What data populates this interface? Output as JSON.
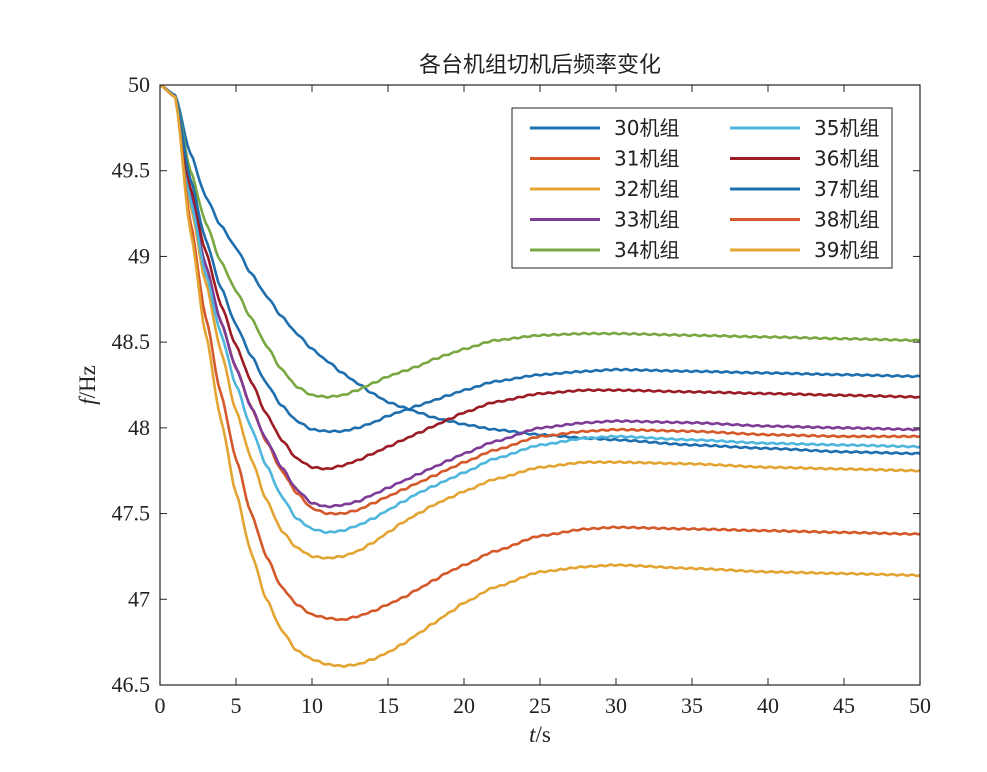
{
  "chart_data": {
    "type": "line",
    "title": "各台机组切机后频率变化",
    "xlabel_var": "t",
    "xlabel_unit": "/s",
    "ylabel_var": "f",
    "ylabel_unit": "/Hz",
    "xlim": [
      0,
      50
    ],
    "ylim": [
      46.5,
      50
    ],
    "xticks": [
      0,
      5,
      10,
      15,
      20,
      25,
      30,
      35,
      40,
      45,
      50
    ],
    "yticks": [
      46.5,
      47,
      47.5,
      48,
      48.5,
      49,
      49.5,
      50
    ],
    "grid": false,
    "legend_position": "top-right",
    "legend_columns": 2,
    "series": [
      {
        "name": "30机组",
        "color": "#1f6fae",
        "points": [
          [
            0,
            50
          ],
          [
            1,
            49.94
          ],
          [
            2,
            49.6
          ],
          [
            3,
            49.35
          ],
          [
            4,
            49.18
          ],
          [
            5,
            49.05
          ],
          [
            6,
            48.9
          ],
          [
            7,
            48.77
          ],
          [
            8,
            48.65
          ],
          [
            9,
            48.55
          ],
          [
            10,
            48.46
          ],
          [
            11,
            48.39
          ],
          [
            12,
            48.32
          ],
          [
            13,
            48.26
          ],
          [
            14,
            48.2
          ],
          [
            15,
            48.15
          ],
          [
            16,
            48.12
          ],
          [
            17,
            48.09
          ],
          [
            18,
            48.06
          ],
          [
            19,
            48.04
          ],
          [
            20,
            48.02
          ],
          [
            22,
            47.99
          ],
          [
            25,
            47.96
          ],
          [
            28,
            47.94
          ],
          [
            30,
            47.93
          ],
          [
            35,
            47.9
          ],
          [
            40,
            47.88
          ],
          [
            45,
            47.86
          ],
          [
            50,
            47.85
          ]
        ]
      },
      {
        "name": "31机组",
        "color": "#d4582a",
        "points": [
          [
            0,
            50
          ],
          [
            1,
            49.93
          ],
          [
            2,
            49.35
          ],
          [
            3,
            48.95
          ],
          [
            4,
            48.62
          ],
          [
            5,
            48.35
          ],
          [
            6,
            48.12
          ],
          [
            7,
            47.92
          ],
          [
            8,
            47.75
          ],
          [
            9,
            47.62
          ],
          [
            10,
            47.53
          ],
          [
            11,
            47.5
          ],
          [
            12,
            47.5
          ],
          [
            13,
            47.52
          ],
          [
            14,
            47.56
          ],
          [
            15,
            47.6
          ],
          [
            16,
            47.64
          ],
          [
            17,
            47.68
          ],
          [
            18,
            47.72
          ],
          [
            19,
            47.76
          ],
          [
            20,
            47.8
          ],
          [
            22,
            47.87
          ],
          [
            25,
            47.95
          ],
          [
            28,
            47.98
          ],
          [
            30,
            47.99
          ],
          [
            35,
            47.98
          ],
          [
            40,
            47.96
          ],
          [
            45,
            47.95
          ],
          [
            50,
            47.95
          ]
        ]
      },
      {
        "name": "32机组",
        "color": "#e3a432",
        "points": [
          [
            0,
            50
          ],
          [
            1,
            49.93
          ],
          [
            2,
            49.3
          ],
          [
            3,
            48.85
          ],
          [
            4,
            48.45
          ],
          [
            5,
            48.1
          ],
          [
            6,
            47.82
          ],
          [
            7,
            47.58
          ],
          [
            8,
            47.4
          ],
          [
            9,
            47.3
          ],
          [
            10,
            47.25
          ],
          [
            11,
            47.24
          ],
          [
            12,
            47.25
          ],
          [
            13,
            47.28
          ],
          [
            14,
            47.33
          ],
          [
            15,
            47.39
          ],
          [
            16,
            47.45
          ],
          [
            17,
            47.5
          ],
          [
            18,
            47.55
          ],
          [
            19,
            47.59
          ],
          [
            20,
            47.63
          ],
          [
            22,
            47.7
          ],
          [
            25,
            47.77
          ],
          [
            28,
            47.8
          ],
          [
            30,
            47.8
          ],
          [
            35,
            47.79
          ],
          [
            40,
            47.77
          ],
          [
            45,
            47.76
          ],
          [
            50,
            47.75
          ]
        ]
      },
      {
        "name": "33机组",
        "color": "#7e3c98",
        "points": [
          [
            0,
            50
          ],
          [
            1,
            49.93
          ],
          [
            2,
            49.35
          ],
          [
            3,
            48.95
          ],
          [
            4,
            48.62
          ],
          [
            5,
            48.35
          ],
          [
            6,
            48.12
          ],
          [
            7,
            47.93
          ],
          [
            8,
            47.77
          ],
          [
            9,
            47.64
          ],
          [
            10,
            47.56
          ],
          [
            11,
            47.54
          ],
          [
            12,
            47.55
          ],
          [
            13,
            47.57
          ],
          [
            14,
            47.61
          ],
          [
            15,
            47.65
          ],
          [
            16,
            47.69
          ],
          [
            17,
            47.73
          ],
          [
            18,
            47.77
          ],
          [
            19,
            47.81
          ],
          [
            20,
            47.85
          ],
          [
            22,
            47.92
          ],
          [
            25,
            48
          ],
          [
            28,
            48.03
          ],
          [
            30,
            48.04
          ],
          [
            35,
            48.03
          ],
          [
            40,
            48.01
          ],
          [
            45,
            48
          ],
          [
            50,
            47.99
          ]
        ]
      },
      {
        "name": "34机组",
        "color": "#79a842",
        "points": [
          [
            0,
            50
          ],
          [
            1,
            49.94
          ],
          [
            2,
            49.5
          ],
          [
            3,
            49.2
          ],
          [
            4,
            48.97
          ],
          [
            5,
            48.8
          ],
          [
            6,
            48.64
          ],
          [
            7,
            48.48
          ],
          [
            8,
            48.34
          ],
          [
            9,
            48.24
          ],
          [
            10,
            48.19
          ],
          [
            11,
            48.18
          ],
          [
            12,
            48.19
          ],
          [
            13,
            48.22
          ],
          [
            14,
            48.26
          ],
          [
            15,
            48.3
          ],
          [
            16,
            48.33
          ],
          [
            17,
            48.36
          ],
          [
            18,
            48.4
          ],
          [
            19,
            48.43
          ],
          [
            20,
            48.46
          ],
          [
            22,
            48.51
          ],
          [
            25,
            48.54
          ],
          [
            28,
            48.55
          ],
          [
            30,
            48.55
          ],
          [
            35,
            48.54
          ],
          [
            40,
            48.53
          ],
          [
            45,
            48.52
          ],
          [
            50,
            48.51
          ]
        ]
      },
      {
        "name": "35机组",
        "color": "#4eb6dc",
        "points": [
          [
            0,
            50
          ],
          [
            1,
            49.93
          ],
          [
            2,
            49.33
          ],
          [
            3,
            48.9
          ],
          [
            4,
            48.55
          ],
          [
            5,
            48.25
          ],
          [
            6,
            48
          ],
          [
            7,
            47.78
          ],
          [
            8,
            47.6
          ],
          [
            9,
            47.47
          ],
          [
            10,
            47.41
          ],
          [
            11,
            47.39
          ],
          [
            12,
            47.4
          ],
          [
            13,
            47.43
          ],
          [
            14,
            47.47
          ],
          [
            15,
            47.52
          ],
          [
            16,
            47.57
          ],
          [
            17,
            47.62
          ],
          [
            18,
            47.66
          ],
          [
            19,
            47.7
          ],
          [
            20,
            47.74
          ],
          [
            22,
            47.82
          ],
          [
            25,
            47.9
          ],
          [
            28,
            47.94
          ],
          [
            30,
            47.95
          ],
          [
            35,
            47.93
          ],
          [
            40,
            47.91
          ],
          [
            45,
            47.9
          ],
          [
            50,
            47.89
          ]
        ]
      },
      {
        "name": "36机组",
        "color": "#9b1c25",
        "points": [
          [
            0,
            50
          ],
          [
            1,
            49.93
          ],
          [
            2,
            49.4
          ],
          [
            3,
            49.03
          ],
          [
            4,
            48.72
          ],
          [
            5,
            48.48
          ],
          [
            6,
            48.27
          ],
          [
            7,
            48.08
          ],
          [
            8,
            47.93
          ],
          [
            9,
            47.82
          ],
          [
            10,
            47.77
          ],
          [
            11,
            47.76
          ],
          [
            12,
            47.78
          ],
          [
            13,
            47.81
          ],
          [
            14,
            47.85
          ],
          [
            15,
            47.89
          ],
          [
            16,
            47.93
          ],
          [
            17,
            47.97
          ],
          [
            18,
            48.01
          ],
          [
            19,
            48.05
          ],
          [
            20,
            48.09
          ],
          [
            22,
            48.15
          ],
          [
            25,
            48.2
          ],
          [
            28,
            48.22
          ],
          [
            30,
            48.22
          ],
          [
            35,
            48.21
          ],
          [
            40,
            48.2
          ],
          [
            45,
            48.19
          ],
          [
            50,
            48.18
          ]
        ]
      },
      {
        "name": "37机组",
        "color": "#1f6fae",
        "points": [
          [
            0,
            50
          ],
          [
            1,
            49.94
          ],
          [
            2,
            49.45
          ],
          [
            3,
            49.1
          ],
          [
            4,
            48.82
          ],
          [
            5,
            48.6
          ],
          [
            6,
            48.42
          ],
          [
            7,
            48.26
          ],
          [
            8,
            48.13
          ],
          [
            9,
            48.04
          ],
          [
            10,
            47.99
          ],
          [
            11,
            47.98
          ],
          [
            12,
            47.98
          ],
          [
            13,
            48
          ],
          [
            14,
            48.03
          ],
          [
            15,
            48.07
          ],
          [
            16,
            48.1
          ],
          [
            17,
            48.13
          ],
          [
            18,
            48.16
          ],
          [
            19,
            48.19
          ],
          [
            20,
            48.22
          ],
          [
            22,
            48.27
          ],
          [
            25,
            48.31
          ],
          [
            28,
            48.33
          ],
          [
            30,
            48.34
          ],
          [
            35,
            48.33
          ],
          [
            40,
            48.32
          ],
          [
            45,
            48.31
          ],
          [
            50,
            48.3
          ]
        ]
      },
      {
        "name": "38机组",
        "color": "#d4582a",
        "points": [
          [
            0,
            50
          ],
          [
            1,
            49.93
          ],
          [
            2,
            49.2
          ],
          [
            3,
            48.65
          ],
          [
            4,
            48.2
          ],
          [
            5,
            47.82
          ],
          [
            6,
            47.5
          ],
          [
            7,
            47.25
          ],
          [
            8,
            47.07
          ],
          [
            9,
            46.97
          ],
          [
            10,
            46.91
          ],
          [
            11,
            46.89
          ],
          [
            12,
            46.88
          ],
          [
            13,
            46.9
          ],
          [
            14,
            46.93
          ],
          [
            15,
            46.97
          ],
          [
            16,
            47.01
          ],
          [
            17,
            47.06
          ],
          [
            18,
            47.11
          ],
          [
            19,
            47.16
          ],
          [
            20,
            47.2
          ],
          [
            22,
            47.28
          ],
          [
            25,
            47.37
          ],
          [
            28,
            47.41
          ],
          [
            30,
            47.42
          ],
          [
            35,
            47.41
          ],
          [
            40,
            47.4
          ],
          [
            45,
            47.39
          ],
          [
            50,
            47.38
          ]
        ]
      },
      {
        "name": "39机组",
        "color": "#e3a432",
        "points": [
          [
            0,
            50
          ],
          [
            1,
            49.93
          ],
          [
            2,
            49.15
          ],
          [
            3,
            48.55
          ],
          [
            4,
            48.05
          ],
          [
            5,
            47.62
          ],
          [
            6,
            47.27
          ],
          [
            7,
            47
          ],
          [
            8,
            46.82
          ],
          [
            9,
            46.7
          ],
          [
            10,
            46.65
          ],
          [
            11,
            46.62
          ],
          [
            12,
            46.61
          ],
          [
            13,
            46.62
          ],
          [
            14,
            46.65
          ],
          [
            15,
            46.69
          ],
          [
            16,
            46.74
          ],
          [
            17,
            46.8
          ],
          [
            18,
            46.86
          ],
          [
            19,
            46.92
          ],
          [
            20,
            46.98
          ],
          [
            22,
            47.07
          ],
          [
            25,
            47.16
          ],
          [
            28,
            47.19
          ],
          [
            30,
            47.2
          ],
          [
            35,
            47.18
          ],
          [
            40,
            47.16
          ],
          [
            45,
            47.15
          ],
          [
            50,
            47.14
          ]
        ]
      }
    ]
  }
}
